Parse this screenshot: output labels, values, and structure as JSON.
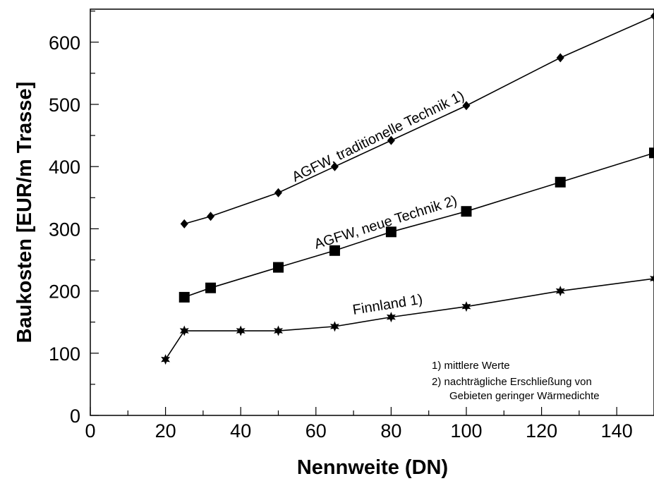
{
  "chart_data": {
    "type": "line",
    "title": "",
    "xlabel": "Nennweite (DN)",
    "ylabel": "Baukosten [EUR/m Trasse]",
    "xlim": [
      0,
      150
    ],
    "ylim": [
      0,
      650
    ],
    "xticks": [
      0,
      20,
      40,
      60,
      80,
      100,
      120,
      140
    ],
    "yticks": [
      0,
      100,
      200,
      300,
      400,
      500,
      600
    ],
    "grid": false,
    "series": [
      {
        "name": "AGFW, traditionelle Technik 1)",
        "marker": "diamond",
        "x": [
          25,
          32,
          50,
          65,
          80,
          100,
          125,
          150
        ],
        "y": [
          308,
          320,
          358,
          400,
          442,
          498,
          575,
          642
        ]
      },
      {
        "name": "AGFW, neue Technik 2)",
        "marker": "square",
        "x": [
          25,
          32,
          50,
          65,
          80,
          100,
          125,
          150
        ],
        "y": [
          190,
          205,
          238,
          265,
          295,
          328,
          375,
          422
        ]
      },
      {
        "name": "Finnland 1)",
        "marker": "star",
        "x": [
          20,
          25,
          40,
          50,
          65,
          80,
          100,
          125,
          150
        ],
        "y": [
          90,
          136,
          136,
          136,
          143,
          158,
          175,
          200,
          220
        ]
      }
    ],
    "notes": [
      "1) mittlere Werte",
      "2) nachträgliche Erschließung von",
      "Gebieten geringer Wärmedichte"
    ]
  }
}
